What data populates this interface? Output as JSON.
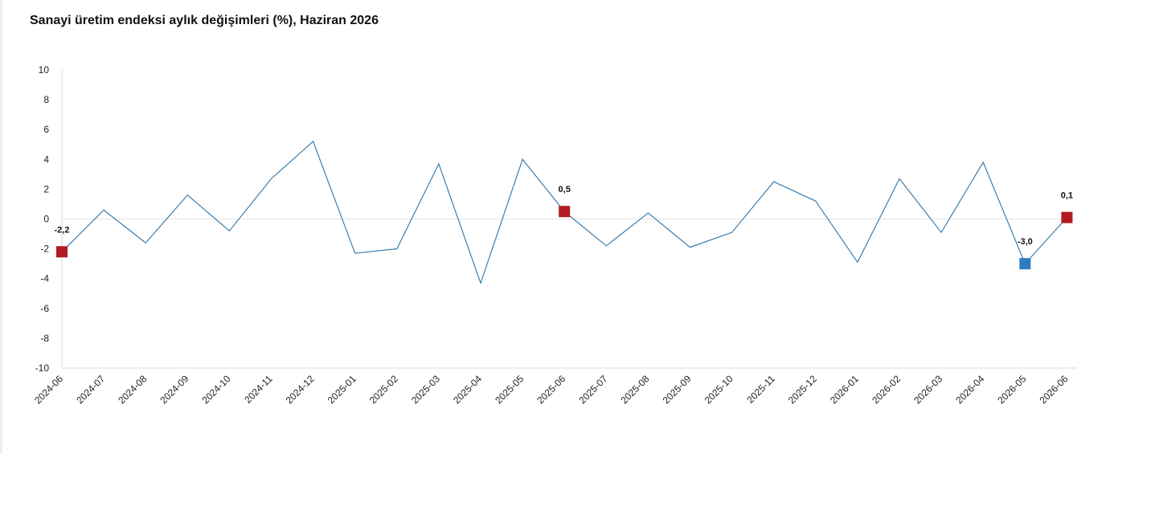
{
  "title": "Sanayi üretim endeksi aylık değişimleri (%), Haziran 2026",
  "chart_data": {
    "type": "line",
    "title": "Sanayi üretim endeksi aylık değişimleri (%), Haziran 2026",
    "xlabel": "",
    "ylabel": "",
    "ylim": [
      -10,
      10
    ],
    "yticks": [
      10,
      8,
      6,
      4,
      2,
      0,
      -2,
      -4,
      -6,
      -8,
      -10
    ],
    "grid": false,
    "legend": "none",
    "categories": [
      "2024-06",
      "2024-07",
      "2024-08",
      "2024-09",
      "2024-10",
      "2024-11",
      "2024-12",
      "2025-01",
      "2025-02",
      "2025-03",
      "2025-04",
      "2025-05",
      "2025-06",
      "2025-07",
      "2025-08",
      "2025-09",
      "2025-10",
      "2025-11",
      "2025-12",
      "2026-01",
      "2026-02",
      "2026-03",
      "2026-04",
      "2026-05",
      "2026-06"
    ],
    "series": [
      {
        "values": [
          -2.2,
          0.6,
          -1.6,
          1.6,
          -0.8,
          2.7,
          5.2,
          -2.3,
          -2.0,
          3.7,
          -4.3,
          4.0,
          0.5,
          -1.8,
          0.4,
          -1.9,
          -0.9,
          2.5,
          1.2,
          -2.9,
          2.7,
          -0.9,
          3.8,
          -3.0,
          0.1
        ],
        "color": "#2e75a8"
      }
    ],
    "highlighted_points": [
      {
        "category": "2024-06",
        "value": -2.2,
        "label": "-2,2",
        "color": "#b01c22"
      },
      {
        "category": "2025-06",
        "value": 0.5,
        "label": "0,5",
        "color": "#b01c22"
      },
      {
        "category": "2026-05",
        "value": -3.0,
        "label": "-3,0",
        "color": "#2e7cbf"
      },
      {
        "category": "2026-06",
        "value": 0.1,
        "label": "0,1",
        "color": "#b01c22"
      }
    ],
    "colors": {
      "line": "#2e75a8",
      "zero_line": "#e3e3e3",
      "axis": "#d9d9d9"
    }
  }
}
